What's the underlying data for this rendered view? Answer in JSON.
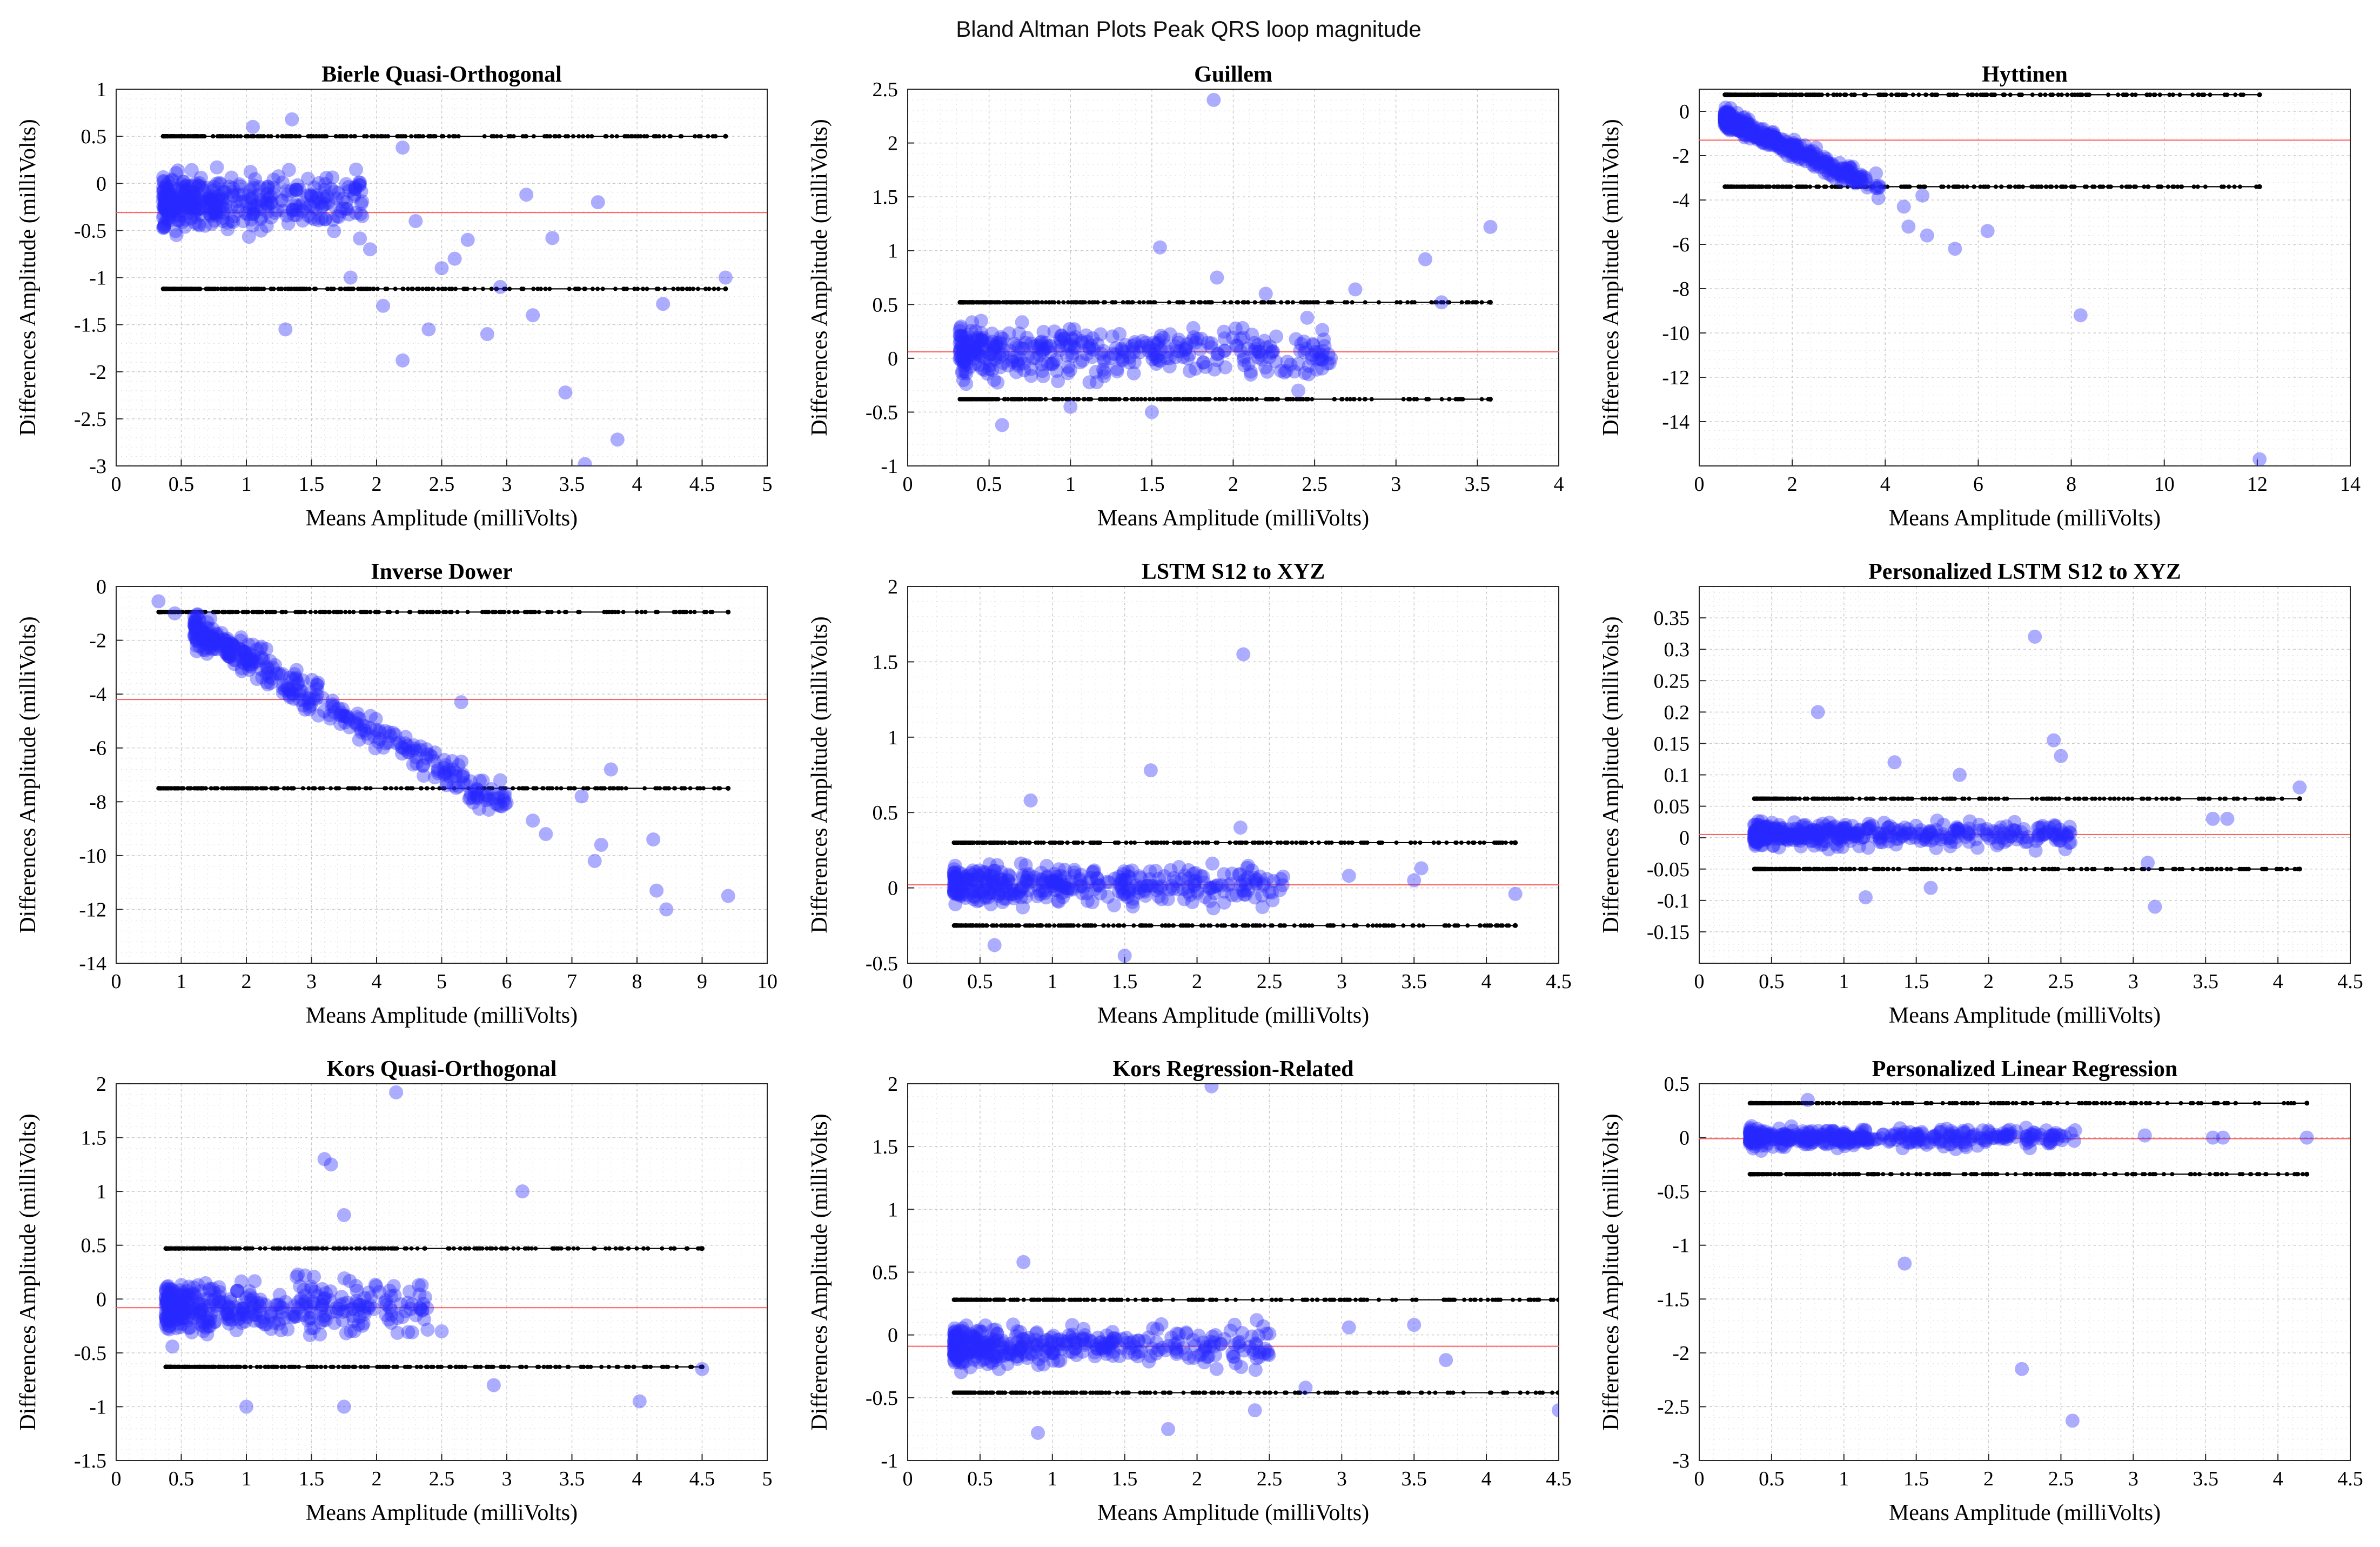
{
  "figure_title": "Bland Altman Plots Peak QRS loop magnitude",
  "colors": {
    "points": "#2b2bff",
    "mean_line": "#ff5a5a",
    "limits": "#000000"
  },
  "chart_data": [
    {
      "type": "scatter",
      "title": "Bierle Quasi-Orthogonal",
      "xlabel": "Means Amplitude (milliVolts)",
      "ylabel": "Differences Amplitude (milliVolts)",
      "xlim": [
        0,
        5
      ],
      "ylim": [
        -3,
        1
      ],
      "xticks": [
        "0",
        "0.5",
        "1",
        "1.5",
        "2",
        "2.5",
        "3",
        "3.5",
        "4",
        "4.5",
        "5"
      ],
      "yticks": [
        "-3",
        "-2.5",
        "-2",
        "-1.5",
        "-1",
        "-0.5",
        "0",
        "0.5",
        "1"
      ],
      "mean_diff": -0.31,
      "upper_loa": 0.5,
      "lower_loa": -1.12,
      "loa_x": [
        0.36,
        4.68
      ],
      "cluster": {
        "x_range": [
          0.36,
          1.9
        ],
        "y_center": -0.2,
        "y_spread": 0.3
      },
      "points": [
        [
          1.05,
          0.6
        ],
        [
          1.35,
          0.68
        ],
        [
          2.2,
          0.38
        ],
        [
          3.15,
          -0.12
        ],
        [
          3.35,
          -0.58
        ],
        [
          3.7,
          -0.2
        ],
        [
          4.68,
          -1.0
        ],
        [
          4.2,
          -1.28
        ],
        [
          3.45,
          -2.22
        ],
        [
          3.6,
          -2.98
        ],
        [
          3.85,
          -2.72
        ],
        [
          2.2,
          -1.88
        ],
        [
          2.4,
          -1.55
        ],
        [
          2.85,
          -1.6
        ],
        [
          3.2,
          -1.4
        ],
        [
          2.05,
          -1.3
        ],
        [
          1.3,
          -1.55
        ],
        [
          2.5,
          -0.9
        ],
        [
          2.95,
          -1.1
        ],
        [
          2.7,
          -0.6
        ],
        [
          2.3,
          -0.4
        ],
        [
          2.6,
          -0.8
        ],
        [
          1.8,
          -1.0
        ],
        [
          1.95,
          -0.7
        ]
      ]
    },
    {
      "type": "scatter",
      "title": "Guillem",
      "xlabel": "Means Amplitude (milliVolts)",
      "ylabel": "Differences Amplitude (milliVolts)",
      "xlim": [
        0,
        4
      ],
      "ylim": [
        -1,
        2.5
      ],
      "xticks": [
        "0",
        "0.5",
        "1",
        "1.5",
        "2",
        "2.5",
        "3",
        "3.5",
        "4"
      ],
      "yticks": [
        "-1",
        "-0.5",
        "0",
        "0.5",
        "1",
        "1.5",
        "2",
        "2.5"
      ],
      "mean_diff": 0.06,
      "upper_loa": 0.52,
      "lower_loa": -0.38,
      "loa_x": [
        0.32,
        3.58
      ],
      "cluster": {
        "x_range": [
          0.32,
          2.6
        ],
        "y_center": 0.05,
        "y_spread": 0.22
      },
      "points": [
        [
          1.88,
          2.4
        ],
        [
          3.58,
          1.22
        ],
        [
          1.55,
          1.03
        ],
        [
          3.18,
          0.92
        ],
        [
          2.75,
          0.64
        ],
        [
          3.28,
          0.52
        ],
        [
          1.9,
          0.75
        ],
        [
          0.58,
          -0.62
        ],
        [
          1.5,
          -0.5
        ],
        [
          1.0,
          -0.45
        ],
        [
          2.4,
          -0.3
        ],
        [
          2.6,
          0.0
        ],
        [
          2.2,
          0.6
        ]
      ]
    },
    {
      "type": "scatter",
      "title": "Hyttinen",
      "xlabel": "Means Amplitude (milliVolts)",
      "ylabel": "Differences Amplitude (milliVolts)",
      "xlim": [
        0,
        14
      ],
      "ylim": [
        -16,
        1
      ],
      "xticks": [
        "0",
        "2",
        "4",
        "6",
        "8",
        "10",
        "12",
        "14"
      ],
      "yticks": [
        "-14",
        "-12",
        "-10",
        "-8",
        "-6",
        "-4",
        "-2",
        "0"
      ],
      "mean_diff": -1.3,
      "upper_loa": 0.75,
      "lower_loa": -3.4,
      "loa_x": [
        0.55,
        12.05
      ],
      "cluster": {
        "x_range": [
          0.55,
          3.9
        ],
        "slope": -0.95,
        "intercept": 0.2,
        "y_spread": 0.4
      },
      "points": [
        [
          12.05,
          -15.7
        ],
        [
          8.2,
          -9.2
        ],
        [
          5.5,
          -6.2
        ],
        [
          6.2,
          -5.4
        ],
        [
          4.9,
          -5.6
        ],
        [
          4.5,
          -5.2
        ],
        [
          4.4,
          -4.3
        ],
        [
          4.8,
          -3.8
        ],
        [
          3.8,
          -2.8
        ],
        [
          2.9,
          -3.0
        ],
        [
          3.3,
          -2.5
        ]
      ]
    },
    {
      "type": "scatter",
      "title": "Inverse Dower",
      "xlabel": "Means Amplitude (milliVolts)",
      "ylabel": "Differences Amplitude (milliVolts)",
      "xlim": [
        0,
        10
      ],
      "ylim": [
        -14,
        0
      ],
      "xticks": [
        "0",
        "1",
        "2",
        "3",
        "4",
        "5",
        "6",
        "7",
        "8",
        "9",
        "10"
      ],
      "yticks": [
        "-14",
        "-12",
        "-10",
        "-8",
        "-6",
        "-4",
        "-2",
        "0"
      ],
      "mean_diff": -4.2,
      "upper_loa": -0.95,
      "lower_loa": -7.5,
      "loa_x": [
        0.65,
        9.4
      ],
      "cluster": {
        "x_range": [
          1.2,
          6.0
        ],
        "slope": -1.35,
        "intercept": 0.0,
        "y_spread": 0.6
      },
      "points": [
        [
          0.65,
          -0.55
        ],
        [
          0.9,
          -1.0
        ],
        [
          9.4,
          -11.5
        ],
        [
          8.45,
          -12.0
        ],
        [
          8.3,
          -11.3
        ],
        [
          8.25,
          -9.4
        ],
        [
          7.35,
          -10.2
        ],
        [
          7.45,
          -9.6
        ],
        [
          7.15,
          -7.8
        ],
        [
          7.6,
          -6.8
        ],
        [
          6.4,
          -8.7
        ],
        [
          6.6,
          -9.2
        ],
        [
          5.3,
          -4.3
        ],
        [
          5.9,
          -7.2
        ]
      ]
    },
    {
      "type": "scatter",
      "title": "LSTM S12 to XYZ",
      "xlabel": "Means Amplitude (milliVolts)",
      "ylabel": "Differences Amplitude (milliVolts)",
      "xlim": [
        0,
        4.5
      ],
      "ylim": [
        -0.5,
        2
      ],
      "xticks": [
        "0",
        "0.5",
        "1",
        "1.5",
        "2",
        "2.5",
        "3",
        "3.5",
        "4",
        "4.5"
      ],
      "yticks": [
        "-0.5",
        "0",
        "0.5",
        "1",
        "1.5",
        "2"
      ],
      "mean_diff": 0.02,
      "upper_loa": 0.3,
      "lower_loa": -0.25,
      "loa_x": [
        0.32,
        4.2
      ],
      "cluster": {
        "x_range": [
          0.32,
          2.6
        ],
        "y_center": 0.02,
        "y_spread": 0.12
      },
      "points": [
        [
          2.32,
          1.55
        ],
        [
          1.68,
          0.78
        ],
        [
          0.85,
          0.58
        ],
        [
          2.3,
          0.4
        ],
        [
          3.55,
          0.13
        ],
        [
          4.2,
          -0.04
        ],
        [
          3.05,
          0.08
        ],
        [
          3.5,
          0.05
        ],
        [
          1.5,
          -0.45
        ],
        [
          0.6,
          -0.38
        ]
      ]
    },
    {
      "type": "scatter",
      "title": "Personalized LSTM S12 to XYZ",
      "xlabel": "Means Amplitude (milliVolts)",
      "ylabel": "Differences Amplitude (milliVolts)",
      "xlim": [
        0,
        4.5
      ],
      "ylim": [
        -0.2,
        0.4
      ],
      "xticks": [
        "0",
        "0.5",
        "1",
        "1.5",
        "2",
        "2.5",
        "3",
        "3.5",
        "4",
        "4.5"
      ],
      "yticks": [
        "-0.15",
        "-0.1",
        "-0.05",
        "0",
        "0.05",
        "0.1",
        "0.15",
        "0.2",
        "0.25",
        "0.3",
        "0.35"
      ],
      "mean_diff": 0.005,
      "upper_loa": 0.062,
      "lower_loa": -0.05,
      "loa_x": [
        0.38,
        4.15
      ],
      "cluster": {
        "x_range": [
          0.38,
          2.6
        ],
        "y_center": 0.005,
        "y_spread": 0.018
      },
      "points": [
        [
          2.32,
          0.32
        ],
        [
          0.82,
          0.2
        ],
        [
          2.45,
          0.155
        ],
        [
          2.5,
          0.13
        ],
        [
          1.35,
          0.12
        ],
        [
          1.8,
          0.1
        ],
        [
          4.15,
          0.08
        ],
        [
          3.55,
          0.03
        ],
        [
          3.65,
          0.03
        ],
        [
          3.1,
          -0.04
        ],
        [
          3.15,
          -0.11
        ],
        [
          1.15,
          -0.095
        ],
        [
          1.6,
          -0.08
        ]
      ]
    },
    {
      "type": "scatter",
      "title": "Kors Quasi-Orthogonal",
      "xlabel": "Means Amplitude (milliVolts)",
      "ylabel": "Differences Amplitude (milliVolts)",
      "xlim": [
        0,
        5
      ],
      "ylim": [
        -1.5,
        2
      ],
      "xticks": [
        "0",
        "0.5",
        "1",
        "1.5",
        "2",
        "2.5",
        "3",
        "3.5",
        "4",
        "4.5",
        "5"
      ],
      "yticks": [
        "-1.5",
        "-1",
        "-0.5",
        "0",
        "0.5",
        "1",
        "1.5",
        "2"
      ],
      "mean_diff": -0.08,
      "upper_loa": 0.47,
      "lower_loa": -0.63,
      "loa_x": [
        0.38,
        4.5
      ],
      "cluster": {
        "x_range": [
          0.38,
          2.4
        ],
        "y_center": -0.08,
        "y_spread": 0.22
      },
      "points": [
        [
          2.15,
          1.92
        ],
        [
          1.6,
          1.3
        ],
        [
          1.65,
          1.25
        ],
        [
          3.12,
          1.0
        ],
        [
          1.75,
          0.78
        ],
        [
          4.02,
          -0.95
        ],
        [
          4.5,
          -0.65
        ],
        [
          1.0,
          -1.0
        ],
        [
          1.75,
          -1.0
        ],
        [
          2.9,
          -0.8
        ],
        [
          2.35,
          -0.1
        ],
        [
          2.5,
          -0.3
        ]
      ]
    },
    {
      "type": "scatter",
      "title": "Kors Regression-Related",
      "xlabel": "Means Amplitude (milliVolts)",
      "ylabel": "Differences Amplitude (milliVolts)",
      "xlim": [
        0,
        4.5
      ],
      "ylim": [
        -1,
        2
      ],
      "xticks": [
        "0",
        "0.5",
        "1",
        "1.5",
        "2",
        "2.5",
        "3",
        "3.5",
        "4",
        "4.5"
      ],
      "yticks": [
        "-1",
        "-0.5",
        "0",
        "0.5",
        "1",
        "1.5",
        "2"
      ],
      "mean_diff": -0.09,
      "upper_loa": 0.28,
      "lower_loa": -0.46,
      "loa_x": [
        0.32,
        4.5
      ],
      "cluster": {
        "x_range": [
          0.32,
          2.5
        ],
        "y_center": -0.1,
        "y_spread": 0.15
      },
      "points": [
        [
          2.1,
          1.98
        ],
        [
          0.8,
          0.58
        ],
        [
          3.72,
          -0.2
        ],
        [
          4.5,
          -0.6
        ],
        [
          2.75,
          -0.42
        ],
        [
          0.9,
          -0.78
        ],
        [
          1.8,
          -0.75
        ],
        [
          3.5,
          0.08
        ],
        [
          3.05,
          0.06
        ],
        [
          2.4,
          -0.6
        ]
      ]
    },
    {
      "type": "scatter",
      "title": "Personalized Linear Regression",
      "xlabel": "Means Amplitude (milliVolts)",
      "ylabel": "Differences Amplitude (milliVolts)",
      "xlim": [
        0,
        4.5
      ],
      "ylim": [
        -3,
        0.5
      ],
      "xticks": [
        "0",
        "0.5",
        "1",
        "1.5",
        "2",
        "2.5",
        "3",
        "3.5",
        "4",
        "4.5"
      ],
      "yticks": [
        "-3",
        "-2.5",
        "-2",
        "-1.5",
        "-1",
        "-0.5",
        "0",
        "0.5"
      ],
      "mean_diff": -0.01,
      "upper_loa": 0.32,
      "lower_loa": -0.34,
      "loa_x": [
        0.35,
        4.2
      ],
      "cluster": {
        "x_range": [
          0.35,
          2.6
        ],
        "y_center": 0.0,
        "y_spread": 0.08
      },
      "points": [
        [
          1.42,
          -1.17
        ],
        [
          2.23,
          -2.15
        ],
        [
          2.58,
          -2.63
        ],
        [
          4.2,
          0.0
        ],
        [
          3.55,
          0.0
        ],
        [
          3.62,
          0.0
        ],
        [
          3.08,
          0.02
        ],
        [
          0.75,
          0.35
        ]
      ]
    }
  ]
}
